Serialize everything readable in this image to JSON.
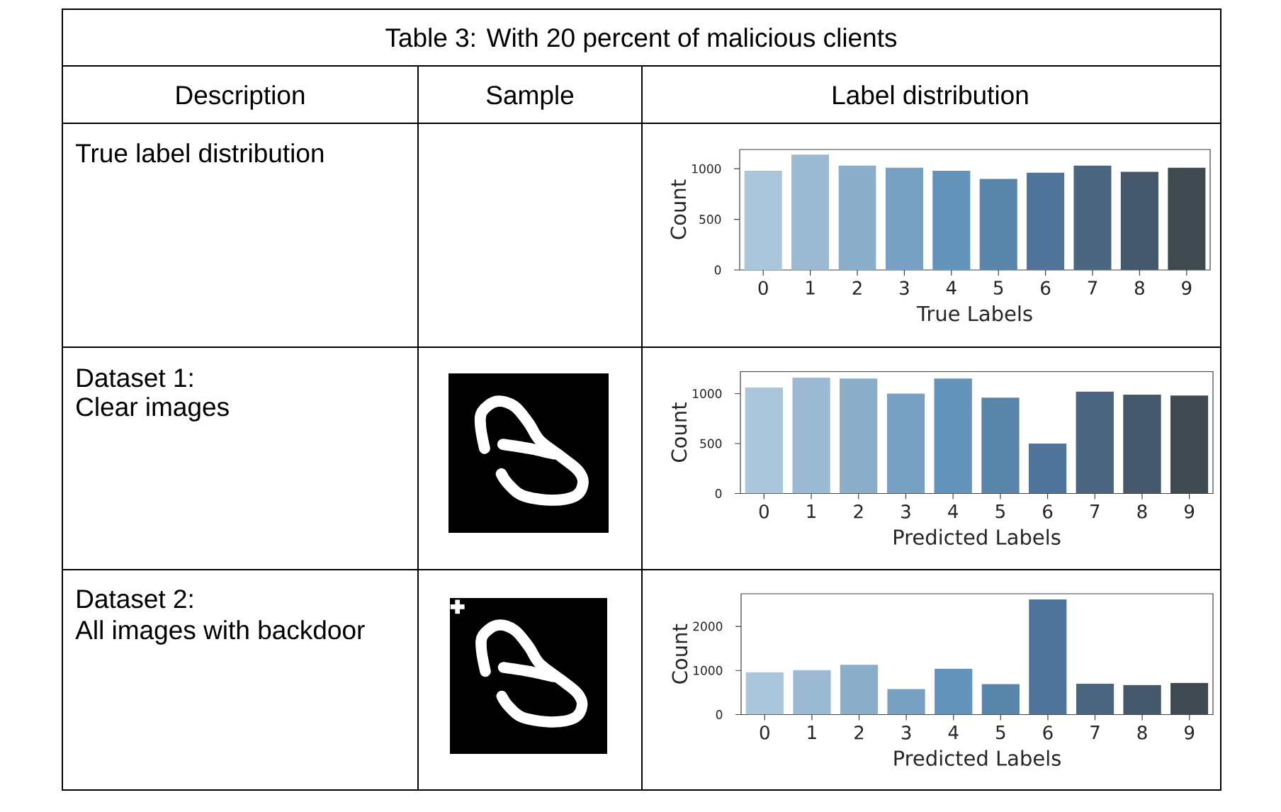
{
  "chart_data": [
    {
      "type": "other",
      "title": "Table 3: With 20 percent of malicious clients",
      "annotations": [
        "Description",
        "Sample",
        "Label distribution",
        "True label distribution",
        "Dataset 1:",
        "Clear images",
        "Dataset 2:",
        "All images with backdoor"
      ]
    },
    {
      "type": "bar",
      "categories": [
        "0",
        "1",
        "2",
        "3",
        "4",
        "5",
        "6",
        "7",
        "8",
        "9"
      ],
      "values": [
        980,
        1140,
        1030,
        1010,
        980,
        900,
        960,
        1030,
        970,
        1010
      ],
      "colors": [
        "#abc6db",
        "#9bb9d3",
        "#8aadca",
        "#78a0c2",
        "#6494bc",
        "#5985ab",
        "#51749a",
        "#4b6681",
        "#45576b",
        "#3f4950"
      ],
      "xlabel": "True Labels",
      "ylabel": "Count",
      "ylim": [
        0,
        1190
      ],
      "yticks": [
        0,
        500,
        1000
      ]
    },
    {
      "type": "bar",
      "categories": [
        "0",
        "1",
        "2",
        "3",
        "4",
        "5",
        "6",
        "7",
        "8",
        "9"
      ],
      "values": [
        1060,
        1160,
        1150,
        1000,
        1150,
        960,
        500,
        1020,
        990,
        980
      ],
      "colors": [
        "#abc6db",
        "#9bb9d3",
        "#8aadca",
        "#78a0c2",
        "#6494bc",
        "#5985ab",
        "#51749a",
        "#4b6681",
        "#45576b",
        "#3f4950"
      ],
      "xlabel": "Predicted Labels",
      "ylabel": "Count",
      "ylim": [
        0,
        1220
      ],
      "yticks": [
        0,
        500,
        1000
      ]
    },
    {
      "type": "bar",
      "categories": [
        "0",
        "1",
        "2",
        "3",
        "4",
        "5",
        "6",
        "7",
        "8",
        "9"
      ],
      "values": [
        960,
        1010,
        1130,
        580,
        1040,
        690,
        2610,
        700,
        670,
        720
      ],
      "colors": [
        "#abc6db",
        "#9bb9d3",
        "#8aadca",
        "#78a0c2",
        "#6494bc",
        "#5985ab",
        "#51749a",
        "#4b6681",
        "#45576b",
        "#3f4950"
      ],
      "xlabel": "Predicted Labels",
      "ylabel": "Count",
      "ylim": [
        0,
        2740
      ],
      "yticks": [
        0,
        1000,
        2000
      ]
    }
  ]
}
